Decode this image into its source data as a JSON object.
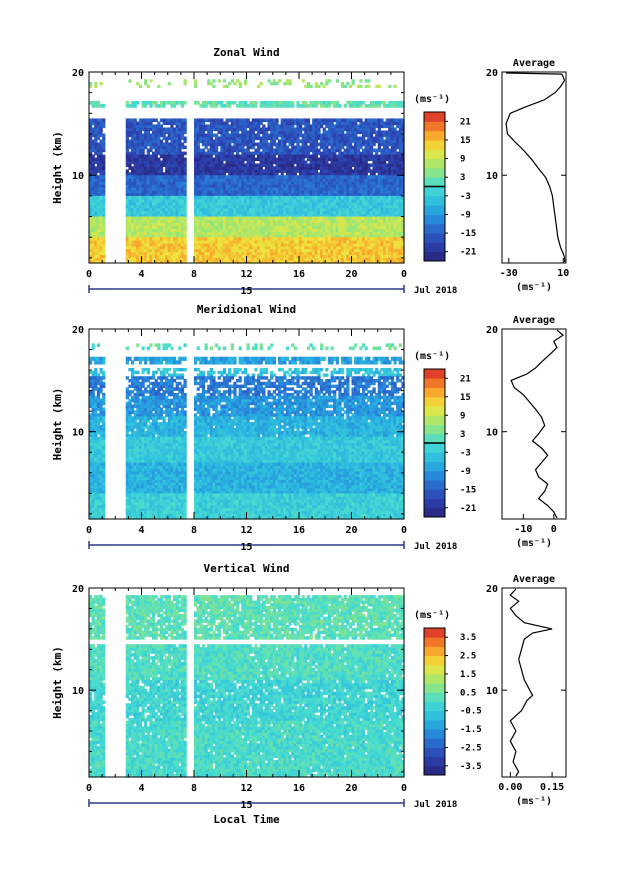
{
  "chart_data": [
    {
      "type": "heatmap",
      "title": "Zonal Wind",
      "ylabel": "Height (km)",
      "xlabel": "",
      "x_ticks": [
        "0",
        "4",
        "8",
        "12",
        "16",
        "20",
        "0"
      ],
      "y_ticks": [
        "10",
        "20"
      ],
      "day_label": "15",
      "date_label": "Jul 2018",
      "xlim": [
        0,
        24
      ],
      "ylim": [
        1.5,
        20
      ],
      "colorbar": {
        "unit": "(ms⁻¹)",
        "ticks": [
          "21",
          "15",
          "9",
          "3",
          "-3",
          "-9",
          "-15",
          "-21"
        ],
        "range": [
          -24,
          24
        ],
        "marker": 0
      },
      "rows": [
        {
          "h": [
            18.5,
            19.3
          ],
          "v": 6,
          "cover": 0.25
        },
        {
          "h": [
            16.6,
            17.2
          ],
          "v": 2,
          "cover": 0.8
        },
        {
          "h": [
            12.0,
            15.5
          ],
          "v": -16,
          "cover": 0.9
        },
        {
          "h": [
            10.0,
            12.0
          ],
          "v": -20,
          "cover": 0.95
        },
        {
          "h": [
            8.0,
            10.0
          ],
          "v": -14,
          "cover": 1.0
        },
        {
          "h": [
            6.0,
            8.0
          ],
          "v": -3,
          "cover": 1.0
        },
        {
          "h": [
            4.0,
            6.0
          ],
          "v": 8,
          "cover": 1.0
        },
        {
          "h": [
            1.5,
            4.0
          ],
          "v": 14,
          "cover": 1.0
        }
      ],
      "gaps": [
        [
          1.2,
          2.8
        ],
        [
          7.6,
          7.9
        ]
      ],
      "profile": {
        "title": "Average",
        "xlabel": "(ms⁻¹)",
        "x_ticks": [
          "-30",
          "10"
        ],
        "xlim": [
          -35,
          12
        ],
        "y_ticks": [
          "10",
          "20"
        ],
        "points": [
          [
            -32,
            19.9
          ],
          [
            9,
            19.8
          ],
          [
            11,
            19.2
          ],
          [
            8,
            18.6
          ],
          [
            4,
            18.0
          ],
          [
            -4,
            17.3
          ],
          [
            -18,
            16.6
          ],
          [
            -29,
            16.0
          ],
          [
            -32,
            15.0
          ],
          [
            -31,
            14.0
          ],
          [
            -26,
            13.3
          ],
          [
            -19,
            12.4
          ],
          [
            -13,
            11.5
          ],
          [
            -8,
            10.6
          ],
          [
            -3,
            9.8
          ],
          [
            0,
            8.9
          ],
          [
            2,
            8.0
          ],
          [
            3,
            7.0
          ],
          [
            4,
            6.0
          ],
          [
            5,
            5.0
          ],
          [
            6,
            4.0
          ],
          [
            8,
            3.0
          ],
          [
            10,
            2.4
          ],
          [
            11,
            2.0
          ],
          [
            11,
            1.6
          ]
        ]
      }
    },
    {
      "type": "heatmap",
      "title": "Meridional Wind",
      "ylabel": "Height (km)",
      "xlabel": "",
      "x_ticks": [
        "0",
        "4",
        "8",
        "12",
        "16",
        "20",
        "0"
      ],
      "y_ticks": [
        "10",
        "20"
      ],
      "day_label": "15",
      "date_label": "Jul 2018",
      "xlim": [
        0,
        24
      ],
      "ylim": [
        1.5,
        20
      ],
      "colorbar": {
        "unit": "(ms⁻¹)",
        "ticks": [
          "21",
          "15",
          "9",
          "3",
          "-3",
          "-9",
          "-15",
          "-21"
        ],
        "range": [
          -24,
          24
        ],
        "marker": 0
      },
      "rows": [
        {
          "h": [
            18.0,
            18.6
          ],
          "v": 2,
          "cover": 0.25
        },
        {
          "h": [
            16.6,
            17.3
          ],
          "v": -8,
          "cover": 0.85
        },
        {
          "h": [
            15.4,
            16.2
          ],
          "v": -4,
          "cover": 0.5
        },
        {
          "h": [
            13.5,
            15.4
          ],
          "v": -12,
          "cover": 0.7
        },
        {
          "h": [
            11.5,
            13.5
          ],
          "v": -9,
          "cover": 0.9
        },
        {
          "h": [
            9.5,
            11.5
          ],
          "v": -6,
          "cover": 0.95
        },
        {
          "h": [
            7.0,
            9.5
          ],
          "v": -3,
          "cover": 1.0
        },
        {
          "h": [
            4.0,
            7.0
          ],
          "v": -6,
          "cover": 1.0
        },
        {
          "h": [
            1.5,
            4.0
          ],
          "v": -2,
          "cover": 1.0
        }
      ],
      "gaps": [
        [
          1.2,
          2.8
        ],
        [
          7.6,
          7.9
        ]
      ],
      "profile": {
        "title": "Average",
        "xlabel": "(ms⁻¹)",
        "x_ticks": [
          "-10",
          "0"
        ],
        "xlim": [
          -17,
          4
        ],
        "y_ticks": [
          "10",
          "20"
        ],
        "points": [
          [
            1,
            19.9
          ],
          [
            3,
            19.4
          ],
          [
            0,
            18.8
          ],
          [
            1,
            18.2
          ],
          [
            -1,
            17.6
          ],
          [
            -4,
            16.8
          ],
          [
            -6,
            16.2
          ],
          [
            -9,
            15.6
          ],
          [
            -14,
            15.0
          ],
          [
            -13,
            14.3
          ],
          [
            -10,
            13.6
          ],
          [
            -8,
            12.9
          ],
          [
            -6,
            12.2
          ],
          [
            -4,
            11.4
          ],
          [
            -3,
            10.6
          ],
          [
            -5,
            9.8
          ],
          [
            -7,
            9.1
          ],
          [
            -4,
            8.4
          ],
          [
            -2,
            7.7
          ],
          [
            -4,
            7.0
          ],
          [
            -6,
            6.3
          ],
          [
            -5,
            5.6
          ],
          [
            -2,
            4.9
          ],
          [
            -3,
            4.2
          ],
          [
            -5,
            3.5
          ],
          [
            -2,
            2.8
          ],
          [
            0,
            2.2
          ],
          [
            1,
            1.6
          ]
        ]
      }
    },
    {
      "type": "heatmap",
      "title": "Vertical Wind",
      "ylabel": "Height (km)",
      "xlabel": "Local Time",
      "x_ticks": [
        "0",
        "4",
        "8",
        "12",
        "16",
        "20",
        "0"
      ],
      "y_ticks": [
        "10",
        "20"
      ],
      "day_label": "15",
      "date_label": "Jul 2018",
      "xlim": [
        0,
        24
      ],
      "ylim": [
        1.5,
        20
      ],
      "colorbar": {
        "unit": "(ms⁻¹)",
        "ticks": [
          "3.5",
          "2.5",
          "1.5",
          "0.5",
          "-0.5",
          "-1.5",
          "-2.5",
          "-3.5"
        ],
        "range": [
          -4,
          4
        ],
        "marker": null
      },
      "rows": [
        {
          "h": [
            17.2,
            19.3
          ],
          "v": 0.3,
          "cover": 0.9
        },
        {
          "h": [
            15.0,
            17.2
          ],
          "v": 0.3,
          "cover": 0.85
        },
        {
          "h": [
            11.0,
            14.5
          ],
          "v": 0.1,
          "cover": 0.95
        },
        {
          "h": [
            7.0,
            11.0
          ],
          "v": -0.2,
          "cover": 0.9
        },
        {
          "h": [
            1.5,
            7.0
          ],
          "v": 0.0,
          "cover": 0.95
        }
      ],
      "gaps": [
        [
          1.2,
          2.8
        ],
        [
          7.6,
          7.9
        ]
      ],
      "profile": {
        "title": "Average",
        "xlabel": "(ms⁻¹)",
        "x_ticks": [
          "0.00",
          "0.15"
        ],
        "xlim": [
          -0.03,
          0.2
        ],
        "y_ticks": [
          "10",
          "20"
        ],
        "points": [
          [
            0.02,
            19.9
          ],
          [
            0.0,
            19.3
          ],
          [
            0.03,
            18.7
          ],
          [
            0.0,
            18.0
          ],
          [
            0.02,
            17.3
          ],
          [
            0.05,
            16.6
          ],
          [
            0.15,
            16.0
          ],
          [
            0.08,
            15.6
          ],
          [
            0.05,
            15.0
          ],
          [
            0.04,
            14.0
          ],
          [
            0.03,
            13.0
          ],
          [
            0.04,
            12.0
          ],
          [
            0.05,
            11.0
          ],
          [
            0.07,
            10.0
          ],
          [
            0.08,
            9.5
          ],
          [
            0.06,
            9.0
          ],
          [
            0.04,
            8.0
          ],
          [
            0.02,
            7.5
          ],
          [
            0.0,
            7.0
          ],
          [
            0.02,
            6.0
          ],
          [
            0.0,
            5.0
          ],
          [
            0.02,
            4.0
          ],
          [
            0.01,
            3.0
          ],
          [
            0.03,
            2.0
          ],
          [
            0.02,
            1.6
          ]
        ]
      }
    }
  ]
}
